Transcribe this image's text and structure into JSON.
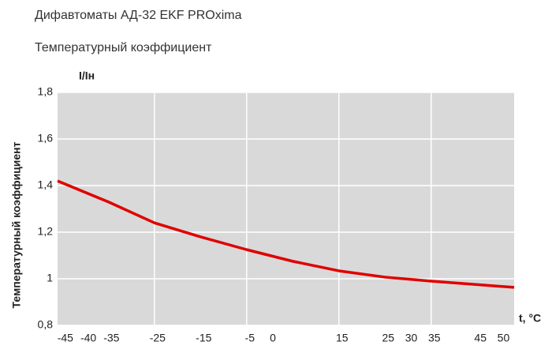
{
  "header": {
    "title": "Дифавтоматы АД-32 EKF PROxima",
    "subtitle": "Температурный коэффициент"
  },
  "chart_data": {
    "type": "line",
    "y_label": "Температурный коэффициент",
    "y_unit": "I/Iн",
    "x_label": "t, °C",
    "x": [
      -46,
      -35,
      -25,
      -15,
      -5,
      5,
      15,
      25,
      35,
      45,
      53
    ],
    "series": [
      {
        "name": "Температурный коэффициент",
        "color": "#e00000",
        "values": [
          1.42,
          1.33,
          1.24,
          1.18,
          1.125,
          1.075,
          1.034,
          1.007,
          0.99,
          0.975,
          0.963
        ]
      }
    ],
    "xlim": [
      -46,
      53
    ],
    "ylim": [
      0.8,
      1.8
    ],
    "xticks": [
      -45,
      -40,
      -35,
      -25,
      -15,
      -5,
      0,
      15,
      25,
      30,
      35,
      45,
      50
    ],
    "xgrid": [
      -25,
      -5,
      15,
      35
    ],
    "yticks": [
      {
        "value": 0.8,
        "label": "0,8"
      },
      1,
      {
        "value": 1.2,
        "label": "1,2"
      },
      {
        "value": 1.4,
        "label": "1,4"
      },
      {
        "value": 1.6,
        "label": "1,6"
      },
      {
        "value": 1.8,
        "label": "1,8"
      }
    ],
    "grid": true,
    "plot_bg": "#d9d9d9"
  }
}
